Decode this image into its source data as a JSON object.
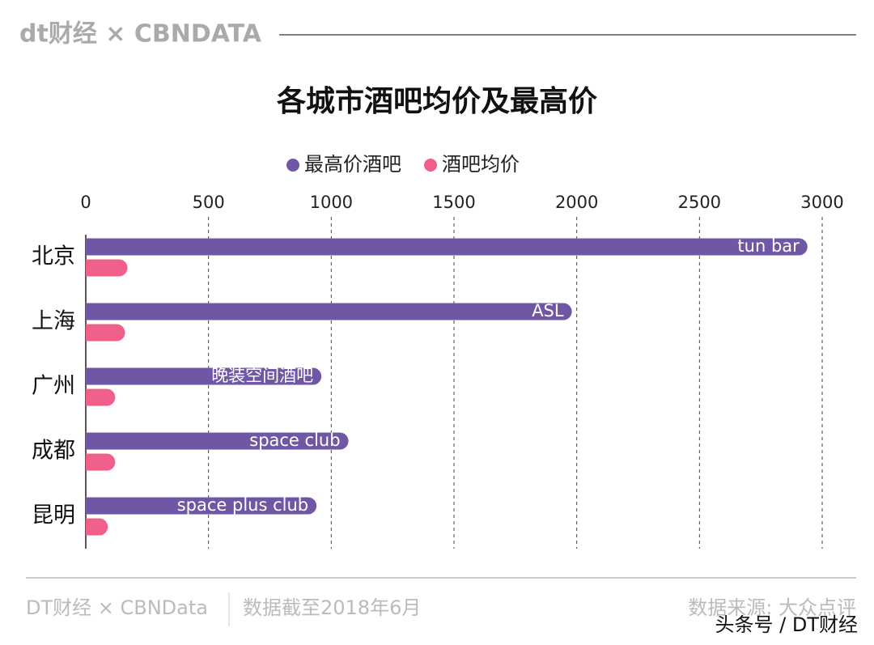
{
  "header": {
    "logo": "dt财经 × CBNDATA"
  },
  "chart_data": {
    "type": "bar",
    "orientation": "horizontal",
    "title": "各城市酒吧均价及最高价",
    "categories": [
      "北京",
      "上海",
      "广州",
      "成都",
      "昆明"
    ],
    "series": [
      {
        "name": "最高价酒吧",
        "color": "#6f57a5",
        "values": [
          2940,
          1980,
          960,
          1070,
          940
        ],
        "bar_labels": [
          "tun bar",
          "ASL",
          "晚装空间酒吧",
          "space club",
          "space plus club"
        ]
      },
      {
        "name": "酒吧均价",
        "color": "#f0608a",
        "values": [
          170,
          160,
          120,
          120,
          90
        ]
      }
    ],
    "xlim": [
      0,
      3000
    ],
    "xticks": [
      0,
      500,
      1000,
      1500,
      2000,
      2500,
      3000
    ],
    "grid": true
  },
  "footer": {
    "brand": "DT财经 × CBNData",
    "date_note": "数据截至2018年6月",
    "source": "数据来源: 大众点评",
    "watermark": "头条号 / DT财经"
  }
}
